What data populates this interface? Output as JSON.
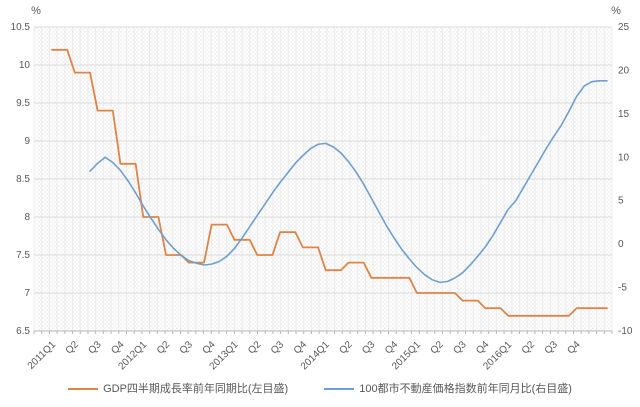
{
  "colors": {
    "grid_horizontal": "#dbdbdb",
    "grid_vertical": "#ececec",
    "axis_line": "#b7b7b7",
    "axis_text": "#595959",
    "gdp_line": "#dd8447",
    "property_line": "#6f9fd0",
    "background": "#ffffff"
  },
  "chart_data": {
    "type": "line",
    "title": "",
    "legend_position": "bottom",
    "grid": {
      "horizontal": true,
      "vertical_monthly": true
    },
    "left_axis": {
      "unit": "%",
      "min": 6.5,
      "max": 10.5,
      "tick_step": 0.5,
      "tick_labels": [
        "10.5",
        "10",
        "9.5",
        "9",
        "8.5",
        "8",
        "7.5",
        "7",
        "6.5"
      ]
    },
    "right_axis": {
      "unit": "%",
      "min": -10,
      "max": 25,
      "tick_step": 5,
      "tick_labels": [
        "25",
        "20",
        "15",
        "10",
        "5",
        "0",
        "-5",
        "-10"
      ]
    },
    "x_axis": {
      "labels": [
        "2011Q1",
        "Q2",
        "Q3",
        "Q4",
        "2012Q1",
        "Q2",
        "Q3",
        "Q4",
        "2013Q1",
        "Q2",
        "Q3",
        "Q4",
        "2014Q1",
        "Q2",
        "Q3",
        "Q4",
        "2015Q1",
        "Q2",
        "Q3",
        "Q4",
        "2016Q1",
        "Q2",
        "Q3",
        "Q4"
      ],
      "months_per_label": 3,
      "total_months": 74
    },
    "series": [
      {
        "name": "GDP四半期成長率前年同期比(左目盛)",
        "axis": "left",
        "style": "quarterly-step",
        "quarterly_values": [
          10.2,
          9.9,
          9.4,
          8.7,
          8.0,
          7.5,
          7.4,
          7.9,
          7.7,
          7.5,
          7.8,
          7.6,
          7.3,
          7.4,
          7.2,
          7.2,
          7.0,
          7.0,
          6.9,
          6.8,
          6.7,
          6.7,
          6.7,
          6.8
        ],
        "extend_months": 2
      },
      {
        "name": "100都市不動産価格指数前年同月比(右目盛)",
        "axis": "right",
        "style": "monthly",
        "start_month_index": 5,
        "values": [
          8.4,
          9.3,
          10.0,
          9.4,
          8.5,
          7.3,
          5.9,
          4.4,
          3.0,
          1.7,
          0.5,
          -0.5,
          -1.3,
          -1.9,
          -2.2,
          -2.4,
          -2.3,
          -2.0,
          -1.4,
          -0.5,
          0.7,
          2.0,
          3.3,
          4.6,
          5.9,
          7.1,
          8.2,
          9.3,
          10.2,
          11.0,
          11.5,
          11.6,
          11.2,
          10.5,
          9.5,
          8.3,
          6.9,
          5.3,
          3.7,
          2.1,
          0.7,
          -0.6,
          -1.7,
          -2.7,
          -3.5,
          -4.1,
          -4.4,
          -4.3,
          -3.9,
          -3.3,
          -2.4,
          -1.4,
          -0.3,
          1.0,
          2.5,
          4.0,
          5.0,
          6.5,
          8.0,
          9.5,
          11.0,
          12.4,
          13.7,
          15.3,
          17.0,
          18.2,
          18.7,
          18.8,
          18.8
        ]
      }
    ]
  }
}
